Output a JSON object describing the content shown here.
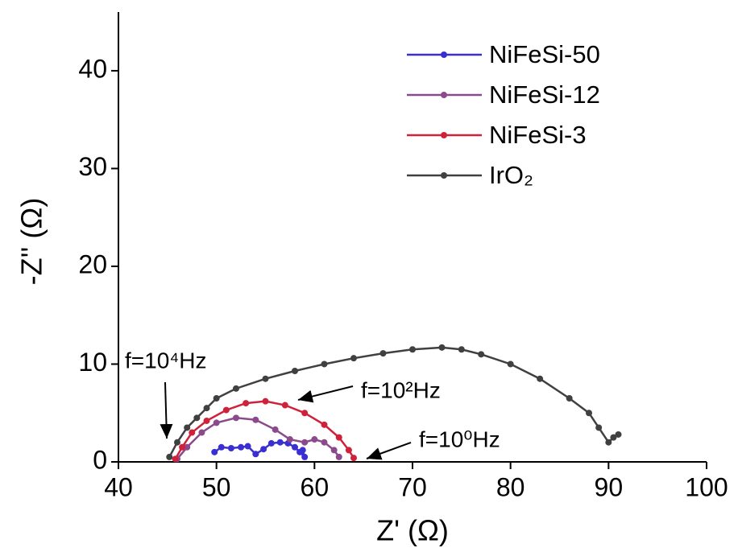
{
  "chart_data": {
    "type": "scatter-line",
    "x_label": "Z' (Ω)",
    "y_label": "-Z'' (Ω)",
    "xlim": [
      40,
      100
    ],
    "ylim": [
      0,
      46
    ],
    "xticks": [
      40,
      50,
      60,
      70,
      80,
      90,
      100
    ],
    "yticks": [
      0,
      10,
      20,
      30,
      40
    ],
    "legend": "top-right",
    "annotations": [
      "f=10⁴Hz",
      "f=10²Hz",
      "f=10⁰Hz"
    ],
    "series": [
      {
        "name": "NiFeSi-50",
        "color": "#3a2fd0",
        "x": [
          49.8,
          50.5,
          51.5,
          52.5,
          53.2,
          54,
          54.8,
          55.6,
          56.5,
          57.3,
          58,
          58.5,
          59,
          58.8
        ],
        "values": [
          1,
          1.5,
          1.4,
          1.5,
          1.6,
          0.8,
          1.3,
          1.9,
          2,
          1.9,
          1.5,
          1,
          0.5,
          1.2
        ]
      },
      {
        "name": "NiFeSi-12",
        "color": "#8b4a8b",
        "x": [
          46,
          47,
          48.5,
          50,
          52,
          54,
          56,
          57.5,
          59,
          60,
          61,
          62,
          62.5
        ],
        "values": [
          0.3,
          1.5,
          3,
          4,
          4.5,
          4.3,
          3.3,
          2.3,
          2,
          2.3,
          2,
          1.2,
          0.5
        ]
      },
      {
        "name": "NiFeSi-3",
        "color": "#d0213a",
        "x": [
          45.8,
          46.5,
          47.5,
          49,
          51,
          53,
          55,
          57,
          59,
          61,
          62.5,
          63.5,
          64
        ],
        "values": [
          0.3,
          1.5,
          3,
          4.2,
          5.3,
          6,
          6.2,
          5.8,
          5,
          3.8,
          2.5,
          1.2,
          0.4
        ]
      },
      {
        "name": "IrO₂",
        "color": "#404040",
        "x": [
          45.2,
          46,
          47,
          48,
          49,
          50,
          52,
          55,
          58,
          61,
          64,
          67,
          70,
          73,
          75,
          77,
          80,
          83,
          86,
          88,
          89,
          90,
          90.5,
          91
        ],
        "values": [
          0.5,
          2,
          3.5,
          4.5,
          5.5,
          6.5,
          7.5,
          8.5,
          9.3,
          10,
          10.6,
          11.1,
          11.5,
          11.7,
          11.5,
          11,
          10,
          8.5,
          6.5,
          5,
          3.5,
          2,
          2.5,
          2.8
        ]
      }
    ]
  }
}
